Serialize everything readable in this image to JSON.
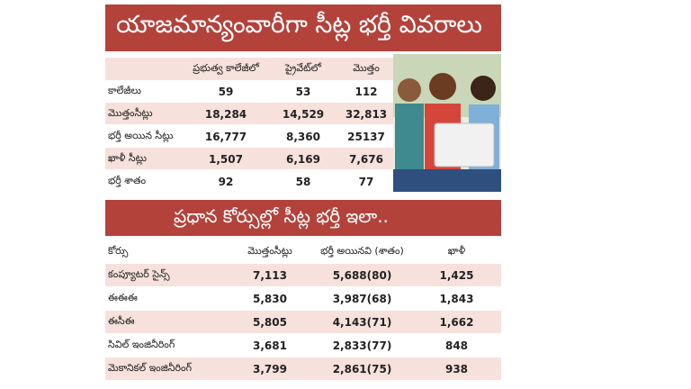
{
  "header": {
    "title": "యాజమాన్యంవారీగా సీట్ల భర్తీ వివరాలు"
  },
  "table": {
    "columns": [
      "ప్రభుత్వ కాలేజీలో",
      "ప్రైవేట్‌లో",
      "మొత్తం"
    ],
    "rows": [
      [
        "కాలేజీలు",
        "59",
        "53",
        "112"
      ],
      [
        "మొత్తంసీట్లు",
        "18,284",
        "14,529",
        "32,813"
      ],
      [
        "భర్తీ అయిన సీట్లు",
        "16,777",
        "8,360",
        "25137"
      ],
      [
        "ఖాళీ సీట్లు",
        "1,507",
        "6,169",
        "7,676"
      ],
      [
        "భర్తీ శాతం",
        "92",
        "58",
        "77"
      ]
    ]
  },
  "section": {
    "title": "ప్రధాన కోర్సుల్లో సీట్ల భర్తీ ఇలా..",
    "columns": [
      "కోర్సు",
      "మొత్తంసీట్లు",
      "భర్తీ అయినవి (శాతం)",
      "ఖాళీ"
    ],
    "rows": [
      [
        "కంప్యూటర్ సైన్స్",
        "7,113",
        "5,688(80)",
        "1,425"
      ],
      [
        "ఈఈఈ",
        "5,830",
        "3,987(68)",
        "1,843"
      ],
      [
        "ఈసీఈ",
        "5,805",
        "4,143(71)",
        "1,662"
      ],
      [
        "సివిల్ ఇంజినీరింగ్",
        "3,681",
        "2,833(77)",
        "848"
      ],
      [
        "మెకానికల్ ఇంజినీరింగ్",
        "3,799",
        "2,861(75)",
        "938"
      ]
    ]
  }
}
